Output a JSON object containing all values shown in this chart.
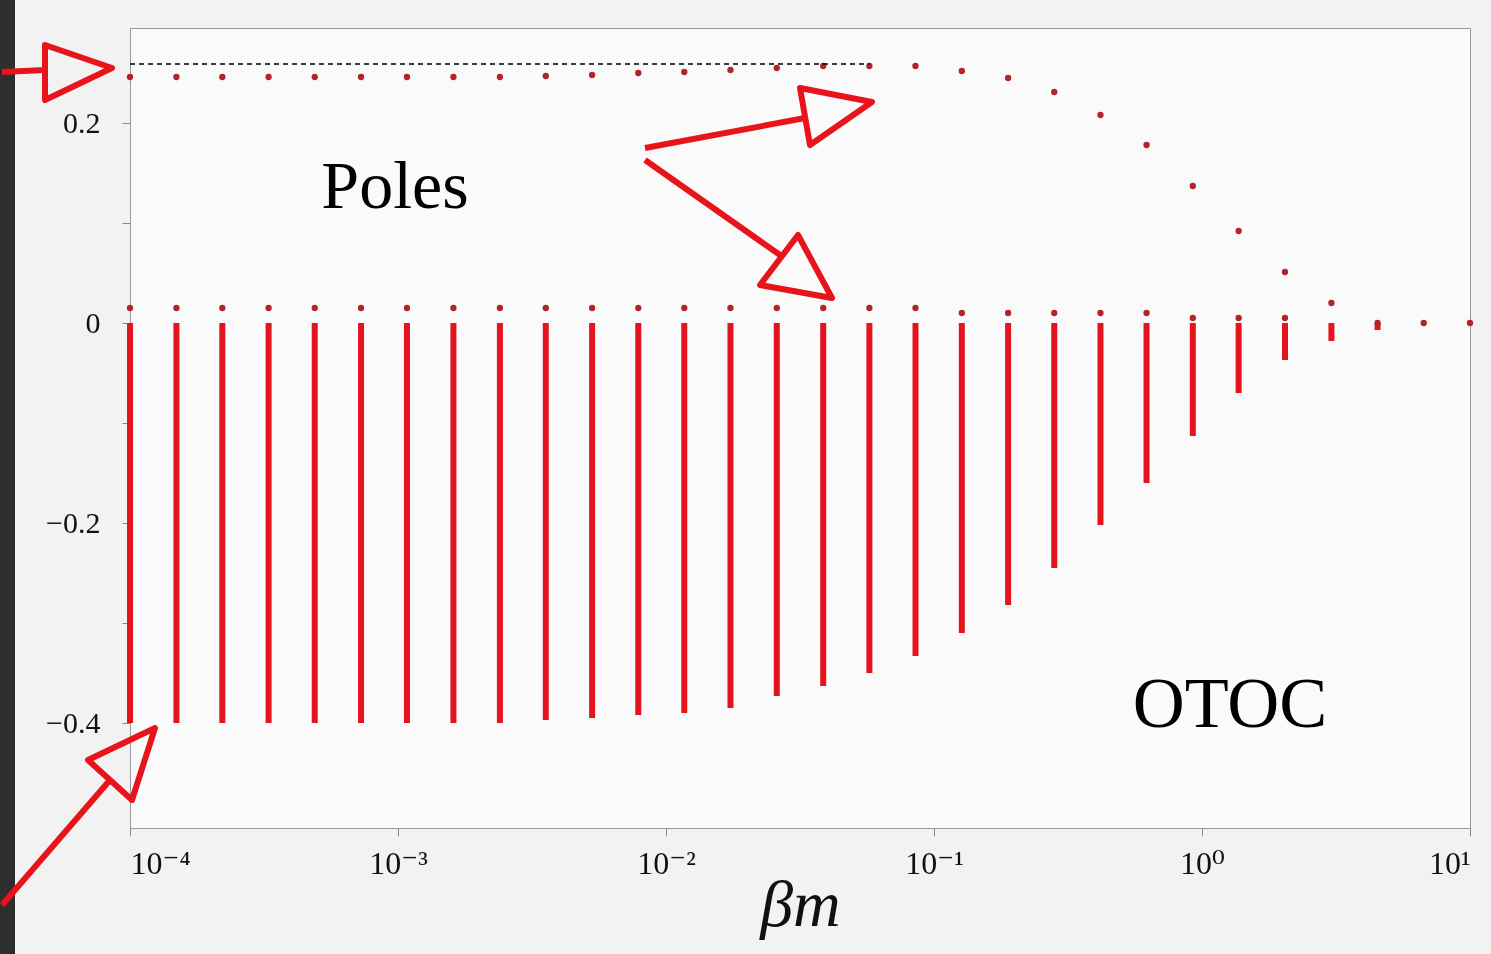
{
  "chart_data": {
    "type": "scatter",
    "xlabel": "βm",
    "log": "x",
    "x": [
      0.0001,
      0.000149,
      0.000221,
      0.000329,
      0.000489,
      0.000728,
      0.00108,
      0.00161,
      0.0024,
      0.00356,
      0.0053,
      0.00788,
      0.0117,
      0.0174,
      0.0259,
      0.0386,
      0.0574,
      0.0853,
      0.127,
      0.189,
      0.281,
      0.418,
      0.621,
      0.924,
      1.37,
      2.04,
      3.04,
      4.52,
      6.72,
      10
    ],
    "series": [
      {
        "type": "bar",
        "color": "#e3141b",
        "values": [
          -0.4,
          -0.4,
          -0.4,
          -0.4,
          -0.4,
          -0.4,
          -0.4,
          -0.4,
          -0.4,
          -0.397,
          -0.395,
          -0.392,
          -0.39,
          -0.385,
          -0.373,
          -0.363,
          -0.35,
          -0.333,
          -0.31,
          -0.282,
          -0.245,
          -0.202,
          -0.16,
          -0.113,
          -0.07,
          -0.037,
          -0.018,
          -0.007,
          null,
          null
        ]
      },
      {
        "color": "#b0242a",
        "values": [
          0.246,
          0.246,
          0.246,
          0.246,
          0.246,
          0.246,
          0.246,
          0.246,
          0.246,
          0.247,
          0.248,
          0.25,
          0.251,
          0.253,
          0.255,
          0.257,
          0.257,
          0.257,
          0.252,
          0.245,
          0.231,
          0.208,
          0.178,
          0.137,
          0.092,
          0.051,
          0.02,
          0,
          0,
          0
        ]
      },
      {
        "color": "#b0242a",
        "values": [
          0.015,
          0.015,
          0.015,
          0.015,
          0.015,
          0.015,
          0.015,
          0.015,
          0.015,
          0.015,
          0.015,
          0.015,
          0.015,
          0.015,
          0.015,
          0.015,
          0.015,
          0.015,
          0.01,
          0.01,
          0.01,
          0.01,
          0.01,
          0.005,
          0.005,
          0.005,
          null,
          null,
          null,
          null
        ]
      },
      {
        "type": "line",
        "color": "#000000",
        "line_style": "dashed",
        "x": [
          0.0001,
          0.0574
        ],
        "values": [
          0.259,
          0.259
        ]
      }
    ],
    "xlim": [
      0.0001,
      10
    ],
    "xticks": [
      {
        "value": 0.0001,
        "label": "10⁻⁴"
      },
      {
        "value": 0.001,
        "label": "10⁻³"
      },
      {
        "value": 0.01,
        "label": "10⁻²"
      },
      {
        "value": 0.1,
        "label": "10⁻¹"
      },
      {
        "value": 1,
        "label": "10⁰"
      },
      {
        "value": 10,
        "label": "10¹"
      }
    ],
    "ylim": [
      -0.505,
      0.295
    ],
    "yticks": [
      {
        "value": -0.4,
        "label": "−0.4"
      },
      {
        "value": -0.3,
        "label": null
      },
      {
        "value": -0.2,
        "label": "−0.2"
      },
      {
        "value": -0.1,
        "label": null
      },
      {
        "value": 0,
        "label": "0"
      },
      {
        "value": 0.1,
        "label": null
      },
      {
        "value": 0.2,
        "label": "0.2"
      }
    ],
    "grid": false,
    "annotations": [
      "Poles",
      "OTOC"
    ]
  }
}
